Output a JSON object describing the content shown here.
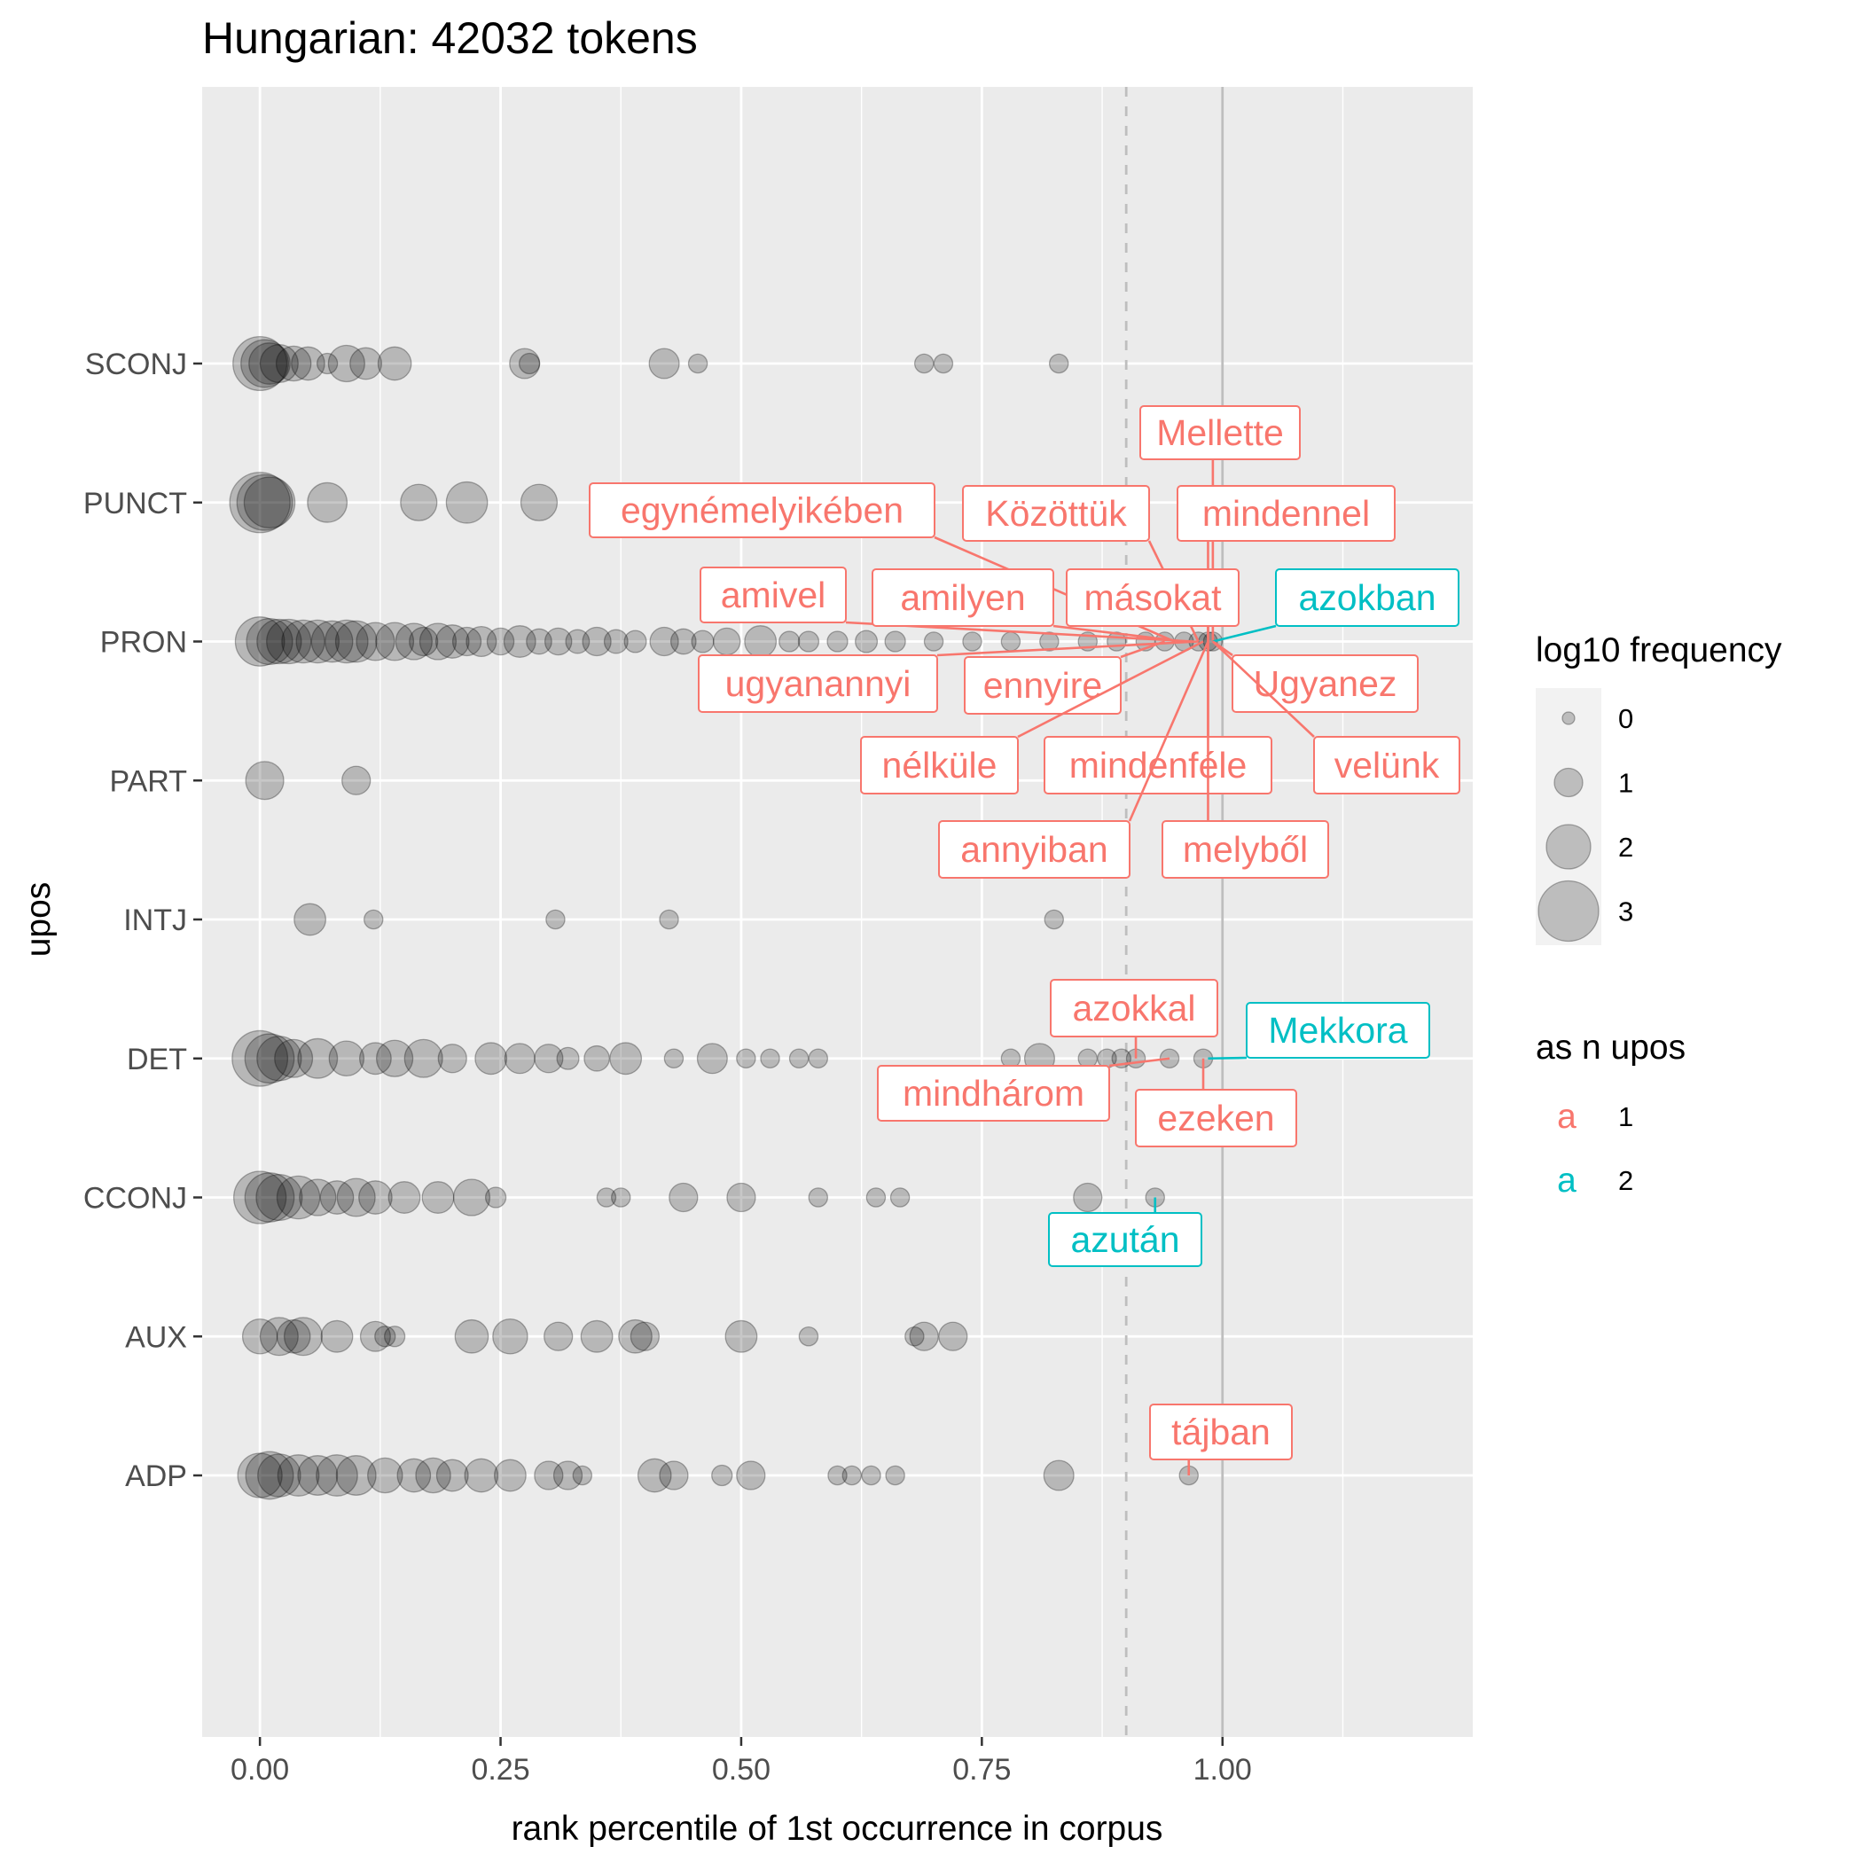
{
  "chart_data": {
    "type": "scatter",
    "title": "Hungarian: 42032 tokens",
    "xlabel": "rank percentile of 1st occurrence in corpus",
    "ylabel": "upos",
    "xlim": [
      -0.06,
      1.26
    ],
    "x_ticks": [
      "0.00",
      "0.25",
      "0.50",
      "0.75",
      "1.00"
    ],
    "x_tick_values": [
      0,
      0.25,
      0.5,
      0.75,
      1.0
    ],
    "y_categories": [
      "ADP",
      "AUX",
      "CCONJ",
      "DET",
      "INTJ",
      "PART",
      "PRON",
      "PUNCT",
      "SCONJ"
    ],
    "reference_lines": [
      {
        "x": 0.9,
        "style": "dashed"
      },
      {
        "x": 1.0,
        "style": "solid"
      }
    ],
    "grid": true,
    "legend_position": "right",
    "size_legend": {
      "title": "log10 frequency",
      "levels": [
        0,
        1,
        2,
        3
      ],
      "labels": [
        "0",
        "1",
        "2",
        "3"
      ]
    },
    "color_legend": {
      "title": "as n upos",
      "key_glyph": "a",
      "items": [
        {
          "label": "1",
          "color": "#F8766D"
        },
        {
          "label": "2",
          "color": "#00BFC4"
        }
      ]
    },
    "points": {
      "SCONJ": [
        [
          0,
          2.6
        ],
        [
          0.005,
          2.2
        ],
        [
          0.01,
          1.8
        ],
        [
          0.02,
          1.6
        ],
        [
          0.035,
          1.4
        ],
        [
          0.05,
          1.3
        ],
        [
          0.07,
          0.5
        ],
        [
          0.09,
          1.5
        ],
        [
          0.11,
          1.2
        ],
        [
          0.14,
          1.3
        ],
        [
          0.275,
          1.1
        ],
        [
          0.28,
          0.5
        ],
        [
          0.42,
          1.1
        ],
        [
          0.455,
          0.4
        ],
        [
          0.69,
          0.4
        ],
        [
          0.71,
          0.4
        ],
        [
          0.83,
          0.4
        ]
      ],
      "PUNCT": [
        [
          0,
          3.0
        ],
        [
          0.005,
          2.7
        ],
        [
          0.01,
          2.4
        ],
        [
          0.07,
          1.7
        ],
        [
          0.165,
          1.5
        ],
        [
          0.215,
          1.8
        ],
        [
          0.29,
          1.5
        ]
      ],
      "PRON": [
        [
          0,
          2.3
        ],
        [
          0.01,
          2.1
        ],
        [
          0.02,
          2.0
        ],
        [
          0.03,
          2.0
        ],
        [
          0.045,
          1.9
        ],
        [
          0.06,
          1.9
        ],
        [
          0.075,
          1.8
        ],
        [
          0.09,
          1.9
        ],
        [
          0.1,
          1.8
        ],
        [
          0.12,
          1.6
        ],
        [
          0.14,
          1.6
        ],
        [
          0.16,
          1.5
        ],
        [
          0.17,
          1.0
        ],
        [
          0.185,
          1.5
        ],
        [
          0.2,
          1.3
        ],
        [
          0.215,
          1.0
        ],
        [
          0.23,
          1.1
        ],
        [
          0.25,
          0.9
        ],
        [
          0.27,
          1.2
        ],
        [
          0.29,
          0.8
        ],
        [
          0.31,
          0.9
        ],
        [
          0.33,
          0.7
        ],
        [
          0.35,
          1.0
        ],
        [
          0.37,
          0.7
        ],
        [
          0.39,
          0.6
        ],
        [
          0.42,
          1.0
        ],
        [
          0.44,
          0.8
        ],
        [
          0.46,
          0.6
        ],
        [
          0.485,
          0.9
        ],
        [
          0.52,
          1.2
        ],
        [
          0.55,
          0.5
        ],
        [
          0.57,
          0.5
        ],
        [
          0.6,
          0.5
        ],
        [
          0.63,
          0.6
        ],
        [
          0.66,
          0.5
        ],
        [
          0.7,
          0.4
        ],
        [
          0.74,
          0.4
        ],
        [
          0.78,
          0.4
        ],
        [
          0.82,
          0.4
        ],
        [
          0.86,
          0.4
        ],
        [
          0.89,
          0.4
        ],
        [
          0.92,
          0.4
        ],
        [
          0.94,
          0.4
        ],
        [
          0.96,
          0.4
        ],
        [
          0.975,
          0.4
        ],
        [
          0.985,
          0.4
        ],
        [
          0.99,
          0.4
        ]
      ],
      "PART": [
        [
          0.005,
          1.6
        ],
        [
          0.1,
          1.0
        ]
      ],
      "INTJ": [
        [
          0.052,
          1.2
        ],
        [
          0.118,
          0.4
        ],
        [
          0.307,
          0.4
        ],
        [
          0.425,
          0.4
        ],
        [
          0.825,
          0.4
        ]
      ],
      "DET": [
        [
          0,
          2.7
        ],
        [
          0.01,
          2.3
        ],
        [
          0.02,
          2.0
        ],
        [
          0.035,
          1.6
        ],
        [
          0.06,
          1.7
        ],
        [
          0.09,
          1.4
        ],
        [
          0.12,
          1.2
        ],
        [
          0.14,
          1.5
        ],
        [
          0.17,
          1.6
        ],
        [
          0.2,
          1.0
        ],
        [
          0.24,
          1.2
        ],
        [
          0.27,
          1.1
        ],
        [
          0.3,
          1.0
        ],
        [
          0.32,
          0.6
        ],
        [
          0.35,
          0.8
        ],
        [
          0.38,
          1.2
        ],
        [
          0.43,
          0.4
        ],
        [
          0.47,
          1.1
        ],
        [
          0.505,
          0.4
        ],
        [
          0.53,
          0.4
        ],
        [
          0.56,
          0.4
        ],
        [
          0.58,
          0.4
        ],
        [
          0.78,
          0.4
        ],
        [
          0.81,
          1.1
        ],
        [
          0.86,
          0.4
        ],
        [
          0.88,
          0.4
        ],
        [
          0.895,
          0.4
        ],
        [
          0.91,
          0.4
        ],
        [
          0.945,
          0.4
        ],
        [
          0.98,
          0.4
        ]
      ],
      "CCONJ": [
        [
          0,
          2.5
        ],
        [
          0.01,
          2.3
        ],
        [
          0.02,
          2.1
        ],
        [
          0.04,
          1.9
        ],
        [
          0.06,
          1.5
        ],
        [
          0.08,
          1.3
        ],
        [
          0.1,
          1.6
        ],
        [
          0.12,
          1.3
        ],
        [
          0.15,
          1.2
        ],
        [
          0.185,
          1.2
        ],
        [
          0.22,
          1.5
        ],
        [
          0.245,
          0.5
        ],
        [
          0.36,
          0.4
        ],
        [
          0.375,
          0.4
        ],
        [
          0.44,
          1.0
        ],
        [
          0.5,
          1.0
        ],
        [
          0.58,
          0.4
        ],
        [
          0.64,
          0.4
        ],
        [
          0.665,
          0.4
        ],
        [
          0.86,
          1.0
        ],
        [
          0.93,
          0.4
        ]
      ],
      "AUX": [
        [
          0,
          1.4
        ],
        [
          0.02,
          1.6
        ],
        [
          0.035,
          1.3
        ],
        [
          0.045,
          1.6
        ],
        [
          0.08,
          1.2
        ],
        [
          0.12,
          1.1
        ],
        [
          0.13,
          0.5
        ],
        [
          0.14,
          0.5
        ],
        [
          0.22,
          1.3
        ],
        [
          0.26,
          1.4
        ],
        [
          0.31,
          1.0
        ],
        [
          0.35,
          1.2
        ],
        [
          0.39,
          1.3
        ],
        [
          0.4,
          1.0
        ],
        [
          0.5,
          1.2
        ],
        [
          0.57,
          0.4
        ],
        [
          0.68,
          0.4
        ],
        [
          0.69,
          1.0
        ],
        [
          0.72,
          1.0
        ]
      ],
      "ADP": [
        [
          0,
          2.0
        ],
        [
          0.01,
          2.2
        ],
        [
          0.02,
          1.9
        ],
        [
          0.04,
          1.8
        ],
        [
          0.06,
          1.7
        ],
        [
          0.08,
          1.8
        ],
        [
          0.1,
          1.7
        ],
        [
          0.13,
          1.4
        ],
        [
          0.16,
          1.3
        ],
        [
          0.18,
          1.4
        ],
        [
          0.2,
          1.2
        ],
        [
          0.23,
          1.3
        ],
        [
          0.26,
          1.2
        ],
        [
          0.3,
          1.0
        ],
        [
          0.32,
          1.0
        ],
        [
          0.335,
          0.4
        ],
        [
          0.41,
          1.3
        ],
        [
          0.43,
          1.0
        ],
        [
          0.48,
          0.5
        ],
        [
          0.51,
          1.0
        ],
        [
          0.6,
          0.4
        ],
        [
          0.615,
          0.4
        ],
        [
          0.635,
          0.4
        ],
        [
          0.66,
          0.4
        ],
        [
          0.83,
          1.1
        ],
        [
          0.965,
          0.4
        ]
      ]
    },
    "annotations": [
      {
        "text": "Mellette",
        "group": "1",
        "category": "PRON",
        "x": 0.99
      },
      {
        "text": "egynémelyikében",
        "group": "1",
        "category": "PRON",
        "x": 0.95
      },
      {
        "text": "Közöttük",
        "group": "1",
        "category": "PRON",
        "x": 0.975
      },
      {
        "text": "mindennel",
        "group": "1",
        "category": "PRON",
        "x": 0.985
      },
      {
        "text": "amivel",
        "group": "1",
        "category": "PRON",
        "x": 0.97
      },
      {
        "text": "amilyen",
        "group": "1",
        "category": "PRON",
        "x": 0.96
      },
      {
        "text": "másokat",
        "group": "1",
        "category": "PRON",
        "x": 0.985
      },
      {
        "text": "azokban",
        "group": "2",
        "category": "PRON",
        "x": 0.99
      },
      {
        "text": "ugyanannyi",
        "group": "1",
        "category": "PRON",
        "x": 0.975
      },
      {
        "text": "ennyire",
        "group": "1",
        "category": "PRON",
        "x": 0.94
      },
      {
        "text": "Ugyanez",
        "group": "1",
        "category": "PRON",
        "x": 0.99
      },
      {
        "text": "nélküle",
        "group": "1",
        "category": "PRON",
        "x": 0.98
      },
      {
        "text": "mindenféle",
        "group": "1",
        "category": "PRON",
        "x": 0.985
      },
      {
        "text": "velünk",
        "group": "1",
        "category": "PRON",
        "x": 0.99
      },
      {
        "text": "annyiban",
        "group": "1",
        "category": "PRON",
        "x": 0.985
      },
      {
        "text": "melyből",
        "group": "1",
        "category": "PRON",
        "x": 0.985
      },
      {
        "text": "azokkal",
        "group": "1",
        "category": "DET",
        "x": 0.91
      },
      {
        "text": "Mekkora",
        "group": "2",
        "category": "DET",
        "x": 0.985
      },
      {
        "text": "mindhárom",
        "group": "1",
        "category": "DET",
        "x": 0.945
      },
      {
        "text": "ezeken",
        "group": "1",
        "category": "DET",
        "x": 0.98
      },
      {
        "text": "azután",
        "group": "2",
        "category": "CCONJ",
        "x": 0.93
      },
      {
        "text": "tájban",
        "group": "1",
        "category": "ADP",
        "x": 0.965
      }
    ]
  }
}
